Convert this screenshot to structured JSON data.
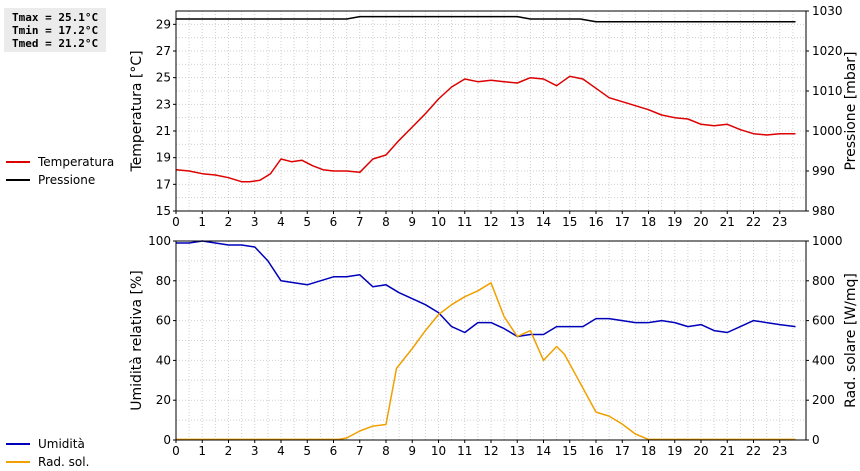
{
  "stats": {
    "tmax": "Tmax = 25.1°C",
    "tmin": "Tmin = 17.2°C",
    "tmed": "Tmed = 21.2°C"
  },
  "legend_top": [
    {
      "label": "Temperatura",
      "color": "#dd0000"
    },
    {
      "label": "Pressione",
      "color": "#000000"
    }
  ],
  "legend_bottom": [
    {
      "label": "Umidità",
      "color": "#0000bb"
    },
    {
      "label": "Rad. sol.",
      "color": "#f0a000"
    }
  ],
  "chart_data": [
    {
      "type": "line",
      "ylabel": "Temperatura [°C]",
      "y2label": "Pressione [mbar]",
      "xlim": [
        0,
        24
      ],
      "xticks": [
        "0",
        "1",
        "2",
        "3",
        "4",
        "5",
        "6",
        "7",
        "8",
        "9",
        "10",
        "11",
        "12",
        "13",
        "14",
        "15",
        "16",
        "17",
        "18",
        "19",
        "20",
        "21",
        "22",
        "23"
      ],
      "ylim": [
        15,
        30
      ],
      "yticks": [
        "15",
        "17",
        "19",
        "21",
        "23",
        "25",
        "27",
        "29"
      ],
      "y2lim": [
        980,
        1030
      ],
      "y2ticks": [
        "980",
        "990",
        "1000",
        "1010",
        "1020",
        "1030"
      ],
      "grid": true,
      "legend": "left",
      "series": [
        {
          "name": "Temperatura",
          "axis": "left",
          "color": "#dd0000",
          "x": [
            0,
            0.5,
            1,
            1.5,
            2,
            2.5,
            2.8,
            3.2,
            3.6,
            4,
            4.4,
            4.8,
            5.2,
            5.6,
            6,
            6.5,
            7,
            7.5,
            8,
            8.5,
            9,
            9.5,
            10,
            10.5,
            11,
            11.5,
            12,
            12.5,
            13,
            13.5,
            14,
            14.5,
            15,
            15.5,
            16,
            16.5,
            17,
            17.5,
            18,
            18.5,
            19,
            19.5,
            20,
            20.5,
            21,
            21.5,
            22,
            22.5,
            23,
            23.6
          ],
          "y": [
            18.1,
            18,
            17.8,
            17.7,
            17.5,
            17.2,
            17.2,
            17.3,
            17.8,
            18.9,
            18.7,
            18.8,
            18.4,
            18.1,
            18,
            18,
            17.9,
            18.9,
            19.2,
            20.3,
            21.3,
            22.3,
            23.4,
            24.3,
            24.9,
            24.7,
            24.8,
            24.7,
            24.6,
            25,
            24.9,
            24.4,
            25.1,
            24.9,
            24.2,
            23.5,
            23.2,
            22.9,
            22.6,
            22.2,
            22,
            21.9,
            21.5,
            21.4,
            21.5,
            21.1,
            20.8,
            20.7,
            20.8,
            20.8
          ]
        },
        {
          "name": "Pressione",
          "axis": "right",
          "color": "#000000",
          "x": [
            0,
            6.5,
            7,
            13,
            13.5,
            15.4,
            16,
            23.6
          ],
          "y": [
            1028,
            1028,
            1028.6,
            1028.6,
            1028,
            1028,
            1027.3,
            1027.3
          ]
        }
      ]
    },
    {
      "type": "line",
      "ylabel": "Umidità relativa [%]",
      "y2label": "Rad. solare [W/mq]",
      "xlim": [
        0,
        24
      ],
      "xticks": [
        "0",
        "1",
        "2",
        "3",
        "4",
        "5",
        "6",
        "7",
        "8",
        "9",
        "10",
        "11",
        "12",
        "13",
        "14",
        "15",
        "16",
        "17",
        "18",
        "19",
        "20",
        "21",
        "22",
        "23"
      ],
      "ylim": [
        0,
        100
      ],
      "yticks": [
        "0",
        "20",
        "40",
        "60",
        "80",
        "100"
      ],
      "y2lim": [
        0,
        1000
      ],
      "y2ticks": [
        "0",
        "200",
        "400",
        "600",
        "800",
        "1000"
      ],
      "grid": true,
      "legend": "left",
      "series": [
        {
          "name": "Umidità",
          "axis": "left",
          "color": "#0000bb",
          "x": [
            0,
            0.5,
            1,
            1.5,
            2,
            2.5,
            3,
            3.5,
            4,
            4.5,
            5,
            5.5,
            6,
            6.5,
            7,
            7.5,
            8,
            8.5,
            9,
            9.5,
            10,
            10.5,
            11,
            11.5,
            12,
            12.5,
            13,
            13.5,
            14,
            14.5,
            15,
            15.5,
            16,
            16.5,
            17,
            17.5,
            18,
            18.5,
            19,
            19.5,
            20,
            20.5,
            21,
            21.5,
            22,
            22.5,
            23,
            23.6
          ],
          "y": [
            99,
            99,
            100,
            99,
            98,
            98,
            97,
            90,
            80,
            79,
            78,
            80,
            82,
            82,
            83,
            77,
            78,
            74,
            71,
            68,
            64,
            57,
            54,
            59,
            59,
            56,
            52,
            53,
            53,
            57,
            57,
            57,
            61,
            61,
            60,
            59,
            59,
            60,
            59,
            57,
            58,
            55,
            54,
            57,
            60,
            59,
            58,
            57
          ]
        },
        {
          "name": "Rad. sol.",
          "axis": "right",
          "color": "#f0a000",
          "x": [
            0,
            6.2,
            6.5,
            7,
            7.5,
            8,
            8.4,
            9,
            9.5,
            10,
            10.5,
            11,
            11.5,
            12,
            12.5,
            13,
            13.5,
            14,
            14.5,
            14.8,
            15.3,
            16,
            16.5,
            17,
            17.5,
            18,
            18.5,
            19,
            23.6
          ],
          "y": [
            3,
            3,
            10,
            45,
            70,
            78,
            360,
            460,
            550,
            630,
            680,
            720,
            750,
            790,
            620,
            520,
            550,
            400,
            470,
            430,
            310,
            140,
            120,
            80,
            30,
            3,
            3,
            3,
            3
          ]
        }
      ]
    }
  ]
}
